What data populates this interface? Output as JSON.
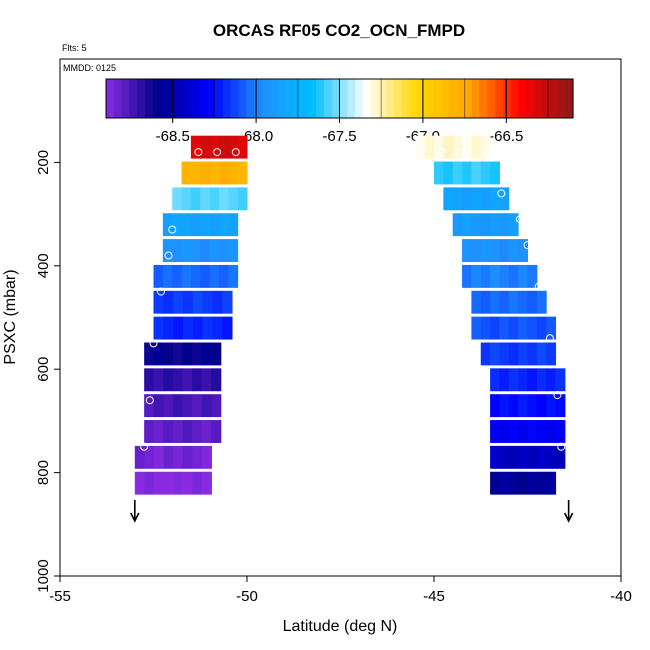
{
  "chart_data": {
    "type": "heatmap",
    "title": "ORCAS RF05 CO2_OCN_FMPD",
    "note_flights": "Flts: 5",
    "note_date": "MMDD: 0125",
    "xlabel": "Latitude (deg N)",
    "ylabel": "PSXC (mbar)",
    "xlim": [
      -55,
      -40
    ],
    "ylim": [
      1000,
      0
    ],
    "x_ticks": [
      -55,
      -50,
      -45,
      -40
    ],
    "x_tick_labels": [
      "-55",
      "-50",
      "-45",
      "-40"
    ],
    "y_ticks": [
      200,
      400,
      600,
      800,
      1000
    ],
    "y_tick_labels": [
      "200",
      "400",
      "600",
      "800",
      "1000"
    ],
    "colorbar": {
      "range": [
        -68.9,
        -66.1
      ],
      "ticks": [
        -68.5,
        -68.0,
        -67.5,
        -67.0,
        -66.5
      ],
      "tick_labels": [
        "-68.5",
        "-68.0",
        "-67.5",
        "-67.0",
        "-66.5"
      ],
      "colors": [
        "#8a2be2",
        "#00008b",
        "#0000ff",
        "#1e90ff",
        "#00bfff",
        "#ffffff",
        "#ffd700",
        "#ffa500",
        "#ff0000",
        "#8b1a1a"
      ]
    },
    "grid": false,
    "left_profile": {
      "direction_arrow": "down",
      "arrow_latitude": -53.0,
      "cells": [
        {
          "p": 170,
          "lat_min": -51.5,
          "lat_max": -50.0,
          "value": -66.3
        },
        {
          "p": 220,
          "lat_min": -51.75,
          "lat_max": -50.0,
          "value": -66.8
        },
        {
          "p": 270,
          "lat_min": -52.0,
          "lat_max": -50.0,
          "value": -67.55
        },
        {
          "p": 320,
          "lat_min": -52.25,
          "lat_max": -50.25,
          "value": -67.85
        },
        {
          "p": 370,
          "lat_min": -52.25,
          "lat_max": -50.25,
          "value": -67.95
        },
        {
          "p": 420,
          "lat_min": -52.5,
          "lat_max": -50.25,
          "value": -68.05
        },
        {
          "p": 470,
          "lat_min": -52.5,
          "lat_max": -50.4,
          "value": -68.15
        },
        {
          "p": 520,
          "lat_min": -52.5,
          "lat_max": -50.4,
          "value": -68.2
        },
        {
          "p": 570,
          "lat_min": -52.75,
          "lat_max": -50.7,
          "value": -68.6
        },
        {
          "p": 620,
          "lat_min": -52.75,
          "lat_max": -50.7,
          "value": -68.7
        },
        {
          "p": 670,
          "lat_min": -52.75,
          "lat_max": -50.7,
          "value": -68.75
        },
        {
          "p": 720,
          "lat_min": -52.75,
          "lat_max": -50.7,
          "value": -68.8
        },
        {
          "p": 770,
          "lat_min": -53.0,
          "lat_max": -50.95,
          "value": -68.85
        },
        {
          "p": 820,
          "lat_min": -53.0,
          "lat_max": -50.95,
          "value": -68.9
        }
      ],
      "markers": [
        {
          "lat": -51.3,
          "p": 180
        },
        {
          "lat": -50.8,
          "p": 180
        },
        {
          "lat": -50.3,
          "p": 180
        },
        {
          "lat": -52.0,
          "p": 330
        },
        {
          "lat": -52.1,
          "p": 380
        },
        {
          "lat": -52.3,
          "p": 450
        },
        {
          "lat": -52.5,
          "p": 550
        },
        {
          "lat": -52.6,
          "p": 660
        },
        {
          "lat": -52.75,
          "p": 750
        }
      ]
    },
    "right_profile": {
      "direction_arrow": "down",
      "arrow_latitude": -41.4,
      "cells": [
        {
          "p": 170,
          "lat_min": -45.5,
          "lat_max": -43.5,
          "value": -67.3
        },
        {
          "p": 220,
          "lat_min": -45.0,
          "lat_max": -43.25,
          "value": -67.6
        },
        {
          "p": 270,
          "lat_min": -44.75,
          "lat_max": -43.0,
          "value": -67.85
        },
        {
          "p": 320,
          "lat_min": -44.5,
          "lat_max": -42.75,
          "value": -67.9
        },
        {
          "p": 370,
          "lat_min": -44.25,
          "lat_max": -42.5,
          "value": -67.95
        },
        {
          "p": 420,
          "lat_min": -44.25,
          "lat_max": -42.25,
          "value": -68.0
        },
        {
          "p": 470,
          "lat_min": -44.0,
          "lat_max": -42.0,
          "value": -68.05
        },
        {
          "p": 520,
          "lat_min": -44.0,
          "lat_max": -41.75,
          "value": -68.1
        },
        {
          "p": 570,
          "lat_min": -43.75,
          "lat_max": -41.75,
          "value": -68.15
        },
        {
          "p": 620,
          "lat_min": -43.5,
          "lat_max": -41.5,
          "value": -68.2
        },
        {
          "p": 670,
          "lat_min": -43.5,
          "lat_max": -41.5,
          "value": -68.25
        },
        {
          "p": 720,
          "lat_min": -43.5,
          "lat_max": -41.5,
          "value": -68.3
        },
        {
          "p": 770,
          "lat_min": -43.5,
          "lat_max": -41.5,
          "value": -68.45
        },
        {
          "p": 820,
          "lat_min": -43.5,
          "lat_max": -41.75,
          "value": -68.55
        }
      ],
      "markers": [
        {
          "lat": -45.6,
          "p": 180
        },
        {
          "lat": -44.8,
          "p": 180
        },
        {
          "lat": -44.3,
          "p": 180
        },
        {
          "lat": -43.6,
          "p": 180
        },
        {
          "lat": -43.2,
          "p": 260
        },
        {
          "lat": -42.7,
          "p": 310
        },
        {
          "lat": -42.5,
          "p": 360
        },
        {
          "lat": -42.2,
          "p": 440
        },
        {
          "lat": -41.9,
          "p": 540
        },
        {
          "lat": -41.7,
          "p": 650
        },
        {
          "lat": -41.6,
          "p": 750
        }
      ]
    }
  }
}
